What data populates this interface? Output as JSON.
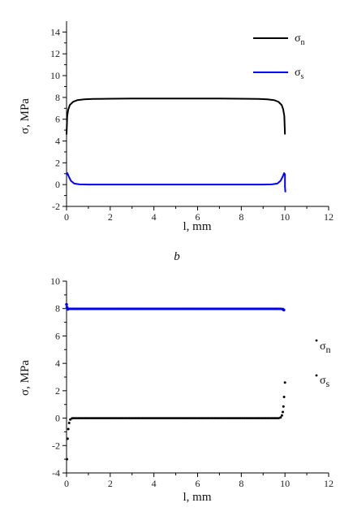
{
  "caption": "b",
  "colors": {
    "normal": "#000000",
    "shear": "#0000ff",
    "axis": "#000000"
  },
  "chart_data": [
    {
      "type": "line",
      "xlabel": "l, mm",
      "ylabel": "σ, MPa",
      "xlim": [
        0,
        12
      ],
      "ylim": [
        -2,
        15
      ],
      "xticks": [
        0,
        2,
        4,
        6,
        8,
        10,
        12
      ],
      "yticks": [
        -2,
        0,
        2,
        4,
        6,
        8,
        10,
        12,
        14
      ],
      "legend": "top-right",
      "series": [
        {
          "name": "σ_n",
          "color": "#000000",
          "x": [
            0.0,
            0.03,
            0.08,
            0.15,
            0.3,
            0.5,
            0.8,
            1.2,
            2,
            3,
            4,
            5,
            6,
            7,
            8,
            8.8,
            9.2,
            9.5,
            9.7,
            9.85,
            9.92,
            9.97,
            10.0
          ],
          "y": [
            4.6,
            6.3,
            6.9,
            7.3,
            7.6,
            7.75,
            7.82,
            7.86,
            7.88,
            7.9,
            7.9,
            7.9,
            7.9,
            7.9,
            7.88,
            7.86,
            7.82,
            7.75,
            7.6,
            7.3,
            6.9,
            6.3,
            4.6
          ]
        },
        {
          "name": "σ_s",
          "color": "#0000ff",
          "x": [
            0.0,
            0.04,
            0.1,
            0.2,
            0.35,
            0.6,
            1.0,
            2,
            4,
            6,
            8,
            9.0,
            9.4,
            9.65,
            9.8,
            9.9,
            9.96,
            10.0,
            10.0,
            10.02
          ],
          "y": [
            0.9,
            1.05,
            0.75,
            0.35,
            0.1,
            0.02,
            0.0,
            0.0,
            0.0,
            0.0,
            0.0,
            0.0,
            0.02,
            0.1,
            0.35,
            0.75,
            1.05,
            0.95,
            -0.2,
            -0.7
          ]
        }
      ]
    },
    {
      "type": "scatter",
      "xlabel": "l, mm",
      "ylabel": "σ, MPa",
      "xlim": [
        0,
        12
      ],
      "ylim": [
        -4,
        10
      ],
      "xticks": [
        0,
        2,
        4,
        6,
        8,
        10,
        12
      ],
      "yticks": [
        -4,
        -2,
        0,
        2,
        4,
        6,
        8,
        10
      ],
      "legend": "right",
      "series": [
        {
          "name": "σ_n",
          "color": "#000000",
          "note_x_range": [
            0.05,
            9.85
          ],
          "x": [
            0.02,
            0.05,
            0.08,
            0.12,
            0.17,
            0.25,
            9.8,
            9.86,
            9.9,
            9.93,
            9.96,
            10.0
          ],
          "y": [
            -3.0,
            -1.5,
            -0.8,
            -0.35,
            -0.1,
            -0.02,
            0.05,
            0.2,
            0.45,
            0.85,
            1.55,
            2.6
          ]
        },
        {
          "name": "σ_s",
          "color": "#0000ff",
          "x": [
            0.0,
            0.02,
            0.04,
            0.06,
            9.9,
            9.95
          ],
          "y": [
            8.3,
            8.1,
            8.0,
            7.95,
            7.95,
            7.9
          ]
        }
      ],
      "legend_entries": [
        "σ_n",
        "σ_s"
      ]
    }
  ],
  "legend_text": {
    "top": {
      "n_main": "σ",
      "n_sub": "n",
      "s_main": "σ",
      "s_sub": "s"
    },
    "bottom": {
      "n_main": "σ",
      "n_sub": "n",
      "s_main": "σ",
      "s_sub": "s"
    }
  }
}
